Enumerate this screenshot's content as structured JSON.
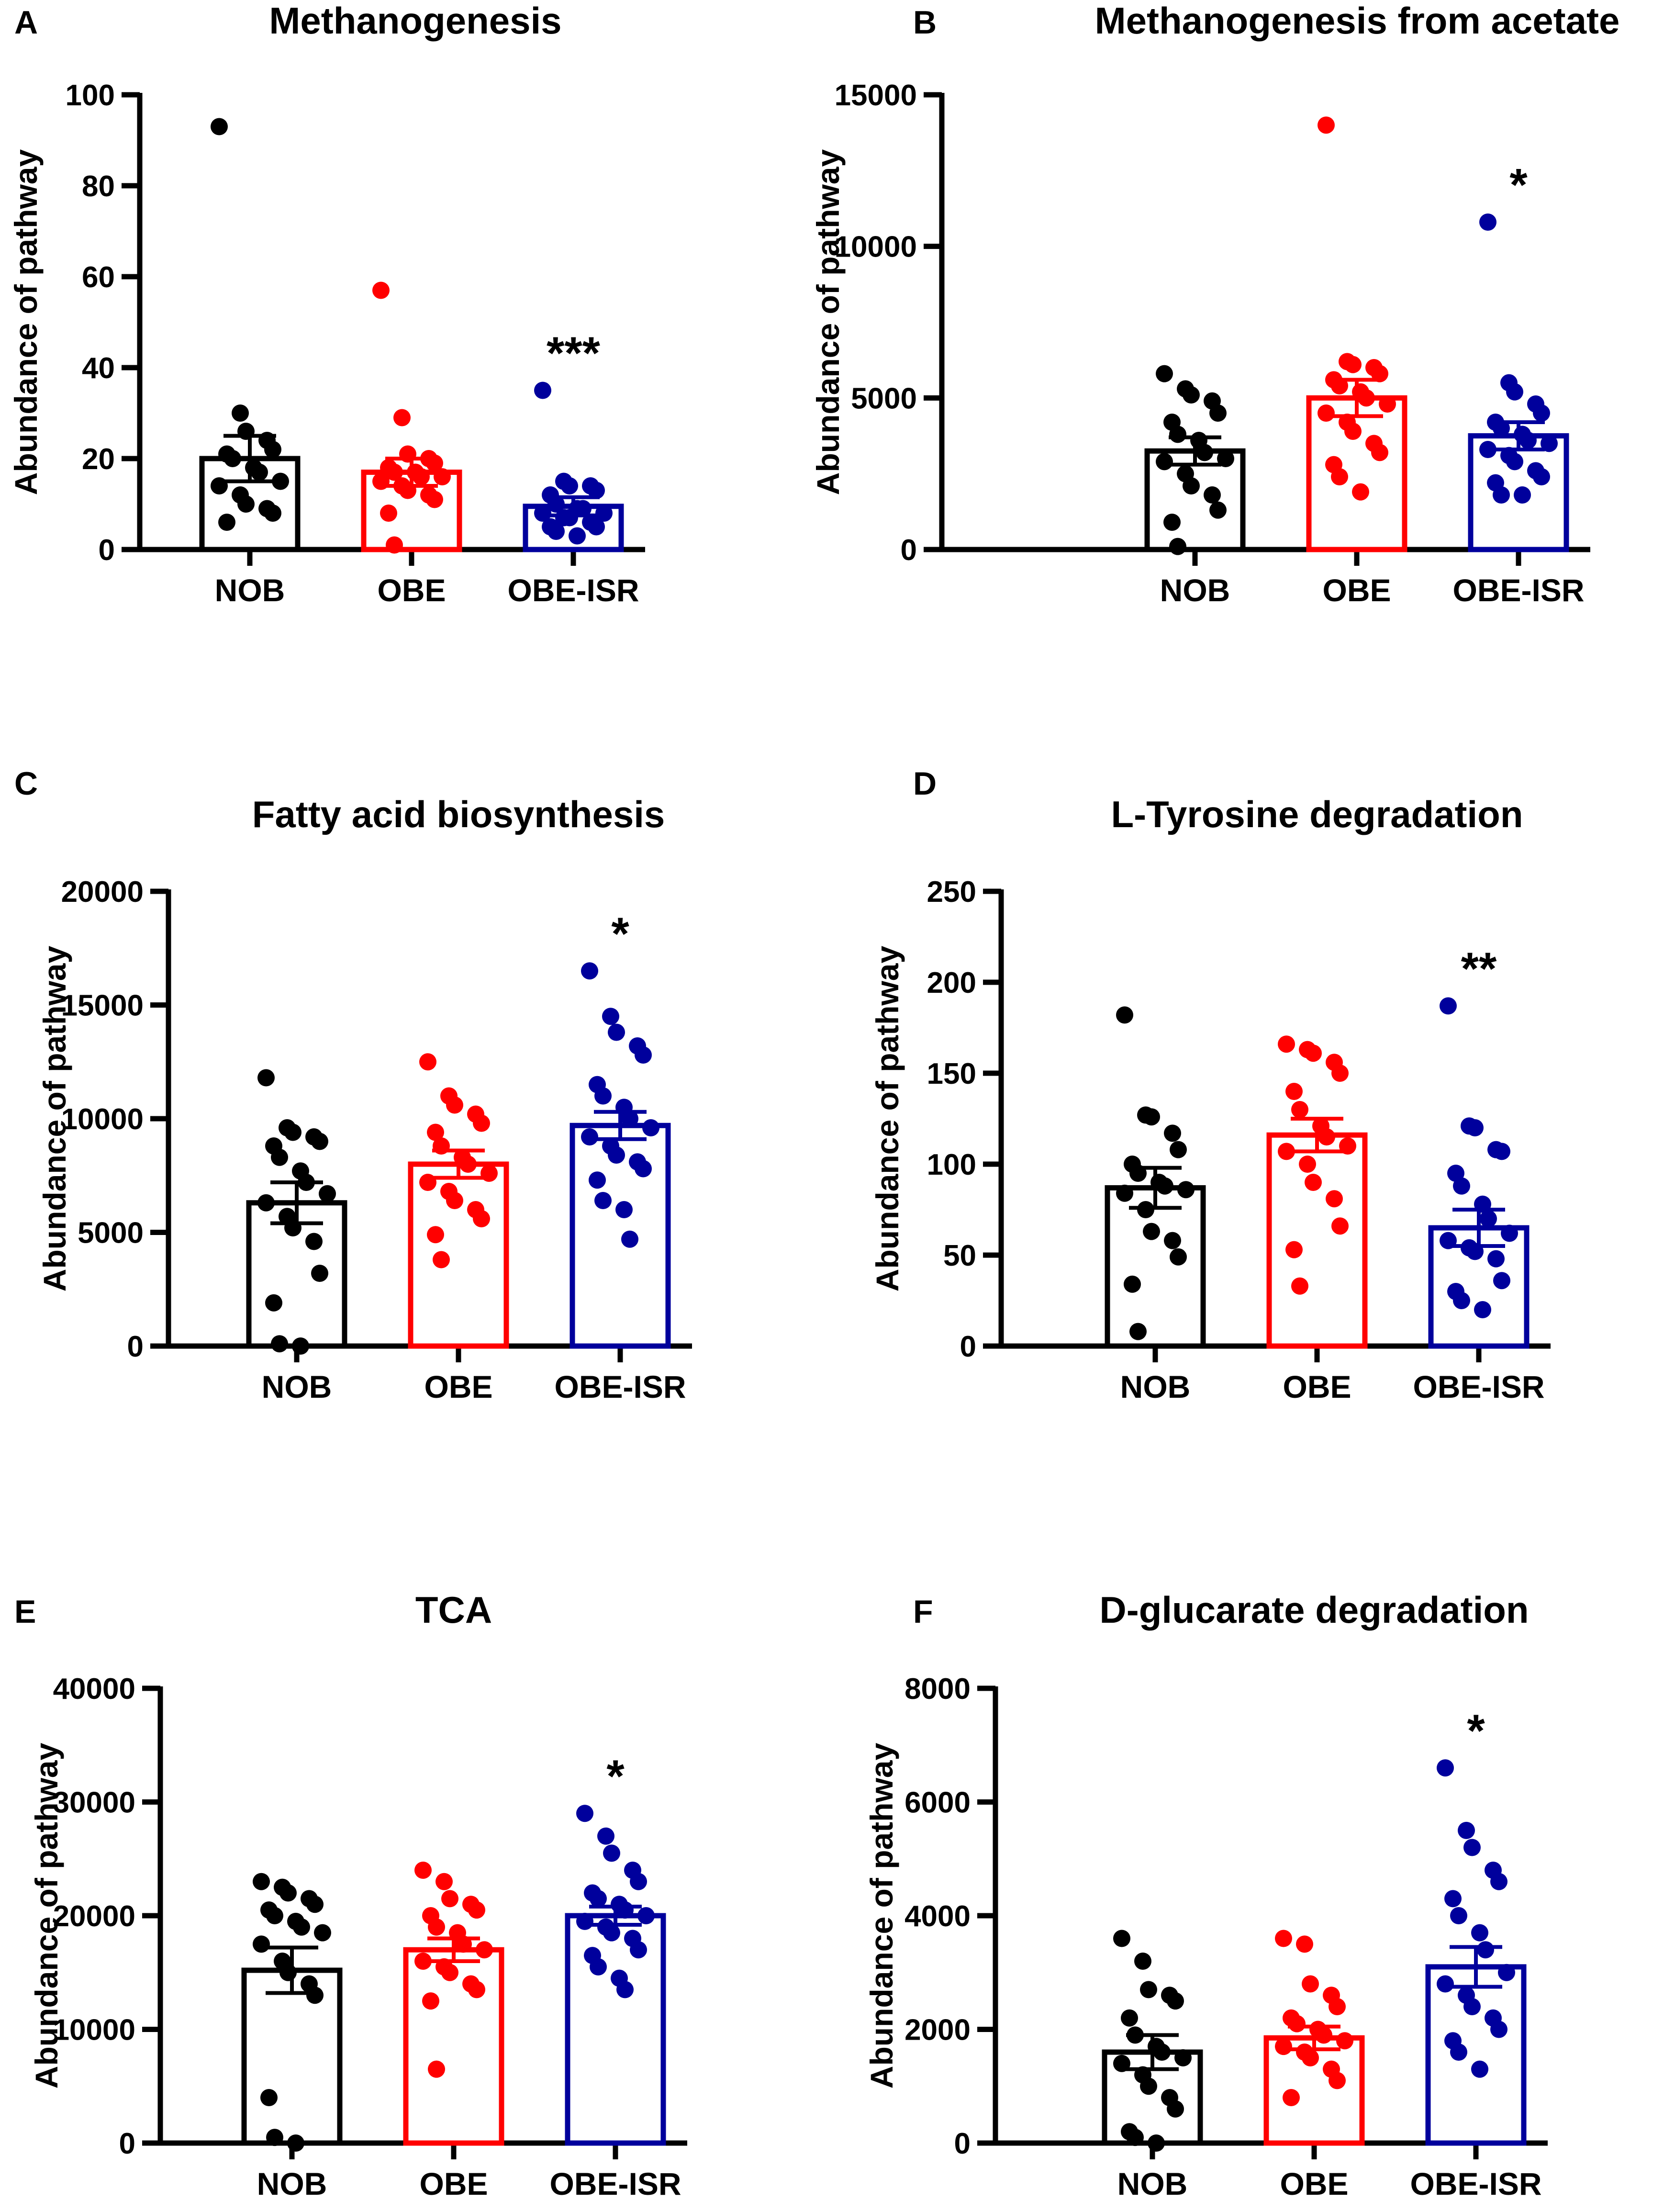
{
  "figure": {
    "type": "bar-scatter panels",
    "y_axis_label": "Abundance of  pathway"
  },
  "colors": {
    "NOB": "#000000",
    "OBE": "#ff0000",
    "OBE-ISR": "#00009c"
  },
  "chart_data": [
    {
      "panel": "A",
      "type": "bar",
      "title": "Methanogenesis",
      "categories": [
        "NOB",
        "OBE",
        "OBE-ISR"
      ],
      "ylabel": "Abundance of  pathway",
      "ylim": [
        0,
        100
      ],
      "yticks": [
        0,
        20,
        40,
        60,
        80,
        100
      ],
      "tick_labels": [
        "0",
        "20",
        "40",
        "60",
        "80",
        "100"
      ],
      "bars": [
        20,
        17,
        9.5
      ],
      "sem": [
        5,
        3,
        2
      ],
      "significance": [
        "",
        "",
        "***"
      ],
      "points": [
        [
          93,
          30,
          26,
          24,
          22,
          21,
          20,
          18,
          17,
          15,
          14,
          12,
          10,
          9,
          8,
          6
        ],
        [
          57,
          29,
          21,
          20,
          19,
          18,
          17,
          17,
          16,
          16,
          15,
          14,
          13,
          12,
          11,
          8,
          1
        ],
        [
          35,
          15,
          14,
          14,
          13,
          12,
          10,
          9,
          9,
          8,
          8,
          7,
          7,
          6,
          5,
          5,
          4,
          3
        ]
      ]
    },
    {
      "panel": "B",
      "type": "bar",
      "title": "Methanogenesis from acetate",
      "categories": [
        "NOB",
        "OBE",
        "OBE-ISR"
      ],
      "ylabel": "Abundance of  pathway",
      "ylim": [
        0,
        15000
      ],
      "yticks": [
        0,
        5000,
        10000,
        15000
      ],
      "tick_labels": [
        "0",
        "5000",
        "10000",
        "15000"
      ],
      "bars": [
        3250,
        5000,
        3750
      ],
      "sem": [
        450,
        600,
        450
      ],
      "significance": [
        "",
        "",
        "*"
      ],
      "points": [
        [
          5800,
          5300,
          5100,
          4900,
          4500,
          4200,
          3800,
          3600,
          3200,
          3000,
          2900,
          2500,
          2100,
          1800,
          1300,
          900,
          100
        ],
        [
          14000,
          6200,
          6100,
          6000,
          5800,
          5600,
          5400,
          5200,
          5000,
          4800,
          4500,
          4200,
          3900,
          3500,
          3200,
          2800,
          2400,
          1900
        ],
        [
          10800,
          5500,
          5200,
          4800,
          4500,
          4200,
          4000,
          3800,
          3600,
          3500,
          3300,
          3100,
          2900,
          2600,
          2400,
          2200,
          1800,
          1800
        ]
      ]
    },
    {
      "panel": "C",
      "type": "bar",
      "title": "Fatty acid biosynthesis",
      "categories": [
        "NOB",
        "OBE",
        "OBE-ISR"
      ],
      "ylabel": "Abundance of  pathway",
      "ylim": [
        0,
        20000
      ],
      "yticks": [
        0,
        5000,
        10000,
        15000,
        20000
      ],
      "tick_labels": [
        "0",
        "5000",
        "10000",
        "15000",
        "20000"
      ],
      "bars": [
        6300,
        8000,
        9700
      ],
      "sem": [
        900,
        600,
        600
      ],
      "significance": [
        "",
        "",
        "*"
      ],
      "points": [
        [
          11800,
          9600,
          9400,
          9200,
          9000,
          8800,
          8300,
          7700,
          7200,
          6700,
          6300,
          5700,
          5200,
          4600,
          3200,
          1900,
          100,
          0
        ],
        [
          12500,
          11000,
          10600,
          10200,
          9800,
          9400,
          8800,
          8300,
          8000,
          7600,
          7200,
          6800,
          6400,
          6000,
          5600,
          4900,
          3800
        ],
        [
          16500,
          14500,
          13800,
          13200,
          12800,
          11500,
          11000,
          10500,
          10000,
          9600,
          9200,
          8800,
          8400,
          8100,
          7800,
          7300,
          6400,
          6000,
          4700
        ]
      ]
    },
    {
      "panel": "D",
      "type": "bar",
      "title": "L-Tyrosine degradation",
      "categories": [
        "NOB",
        "OBE",
        "OBE-ISR"
      ],
      "ylabel": "Abundance of  pathway",
      "ylim": [
        0,
        250
      ],
      "yticks": [
        0,
        50,
        100,
        150,
        200,
        250
      ],
      "tick_labels": [
        "0",
        "50",
        "100",
        "150",
        "200",
        "250"
      ],
      "bars": [
        87,
        116,
        65
      ],
      "sem": [
        11,
        9,
        10
      ],
      "significance": [
        "",
        "",
        "**"
      ],
      "points": [
        [
          182,
          127,
          126,
          117,
          108,
          100,
          95,
          90,
          88,
          86,
          84,
          75,
          63,
          58,
          49,
          34,
          8
        ],
        [
          166,
          163,
          161,
          156,
          150,
          140,
          130,
          121,
          115,
          110,
          107,
          100,
          90,
          81,
          66,
          53,
          33
        ],
        [
          187,
          121,
          120,
          108,
          107,
          95,
          88,
          78,
          70,
          62,
          58,
          54,
          52,
          48,
          36,
          30,
          25,
          20
        ]
      ]
    },
    {
      "panel": "E",
      "type": "bar",
      "title": "TCA",
      "categories": [
        "NOB",
        "OBE",
        "OBE-ISR"
      ],
      "ylabel": "Abundance of  pathway",
      "ylim": [
        0,
        40000
      ],
      "yticks": [
        0,
        10000,
        20000,
        30000,
        40000
      ],
      "tick_labels": [
        "0",
        "10000",
        "20000",
        "30000",
        "40000"
      ],
      "bars": [
        15200,
        17000,
        20000
      ],
      "sem": [
        2000,
        1000,
        800
      ],
      "significance": [
        "",
        "",
        "*"
      ],
      "points": [
        [
          23000,
          22500,
          22000,
          21500,
          21000,
          20500,
          20000,
          19500,
          19000,
          18500,
          17500,
          16000,
          15000,
          14000,
          13000,
          4000,
          500,
          0
        ],
        [
          24000,
          23000,
          21500,
          21000,
          20500,
          20000,
          19000,
          18500,
          17500,
          17000,
          16000,
          15500,
          15000,
          14000,
          13500,
          12500,
          6500
        ],
        [
          29000,
          27000,
          25500,
          24000,
          23000,
          22000,
          21500,
          21000,
          20500,
          20000,
          19500,
          19000,
          18500,
          18000,
          17000,
          16500,
          15500,
          14500,
          13500
        ]
      ]
    },
    {
      "panel": "F",
      "type": "bar",
      "title": "D-glucarate degradation",
      "categories": [
        "NOB",
        "OBE",
        "OBE-ISR"
      ],
      "ylabel": "Abundance of  pathway",
      "ylim": [
        0,
        8000
      ],
      "yticks": [
        0,
        2000,
        4000,
        6000,
        8000
      ],
      "tick_labels": [
        "0",
        "2000",
        "4000",
        "6000",
        "8000"
      ],
      "bars": [
        1600,
        1850,
        3100
      ],
      "sem": [
        300,
        200,
        350
      ],
      "significance": [
        "",
        "",
        "*"
      ],
      "points": [
        [
          3600,
          3200,
          2700,
          2600,
          2500,
          2200,
          1900,
          1700,
          1600,
          1500,
          1400,
          1200,
          1000,
          800,
          600,
          200,
          100,
          0
        ],
        [
          3600,
          3500,
          2800,
          2600,
          2400,
          2200,
          2100,
          2000,
          1900,
          1800,
          1700,
          1600,
          1500,
          1300,
          1100,
          800
        ],
        [
          6600,
          5500,
          5200,
          4800,
          4600,
          4300,
          4000,
          3700,
          3400,
          3000,
          2800,
          2600,
          2400,
          2200,
          2000,
          1800,
          1600,
          1300
        ]
      ]
    }
  ]
}
